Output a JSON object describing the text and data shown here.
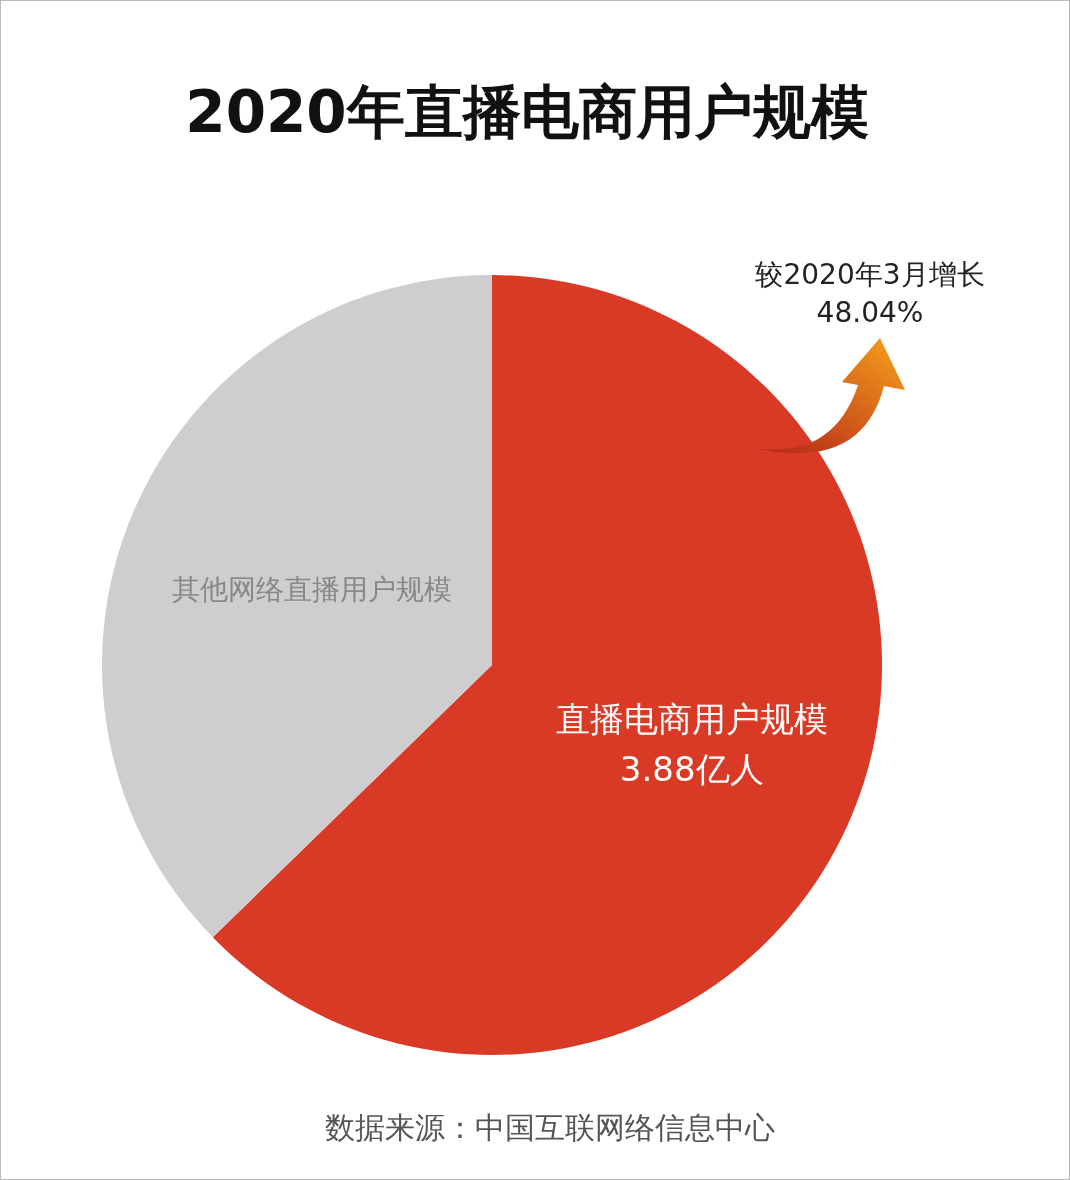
{
  "chart_data": {
    "type": "pie",
    "title": "2020年直播电商用户规模",
    "categories": [
      "直播电商用户规模",
      "其他网络直播用户规模"
    ],
    "values": [
      62.7,
      37.3
    ],
    "colors": [
      "#d93a26",
      "#cfcdcf"
    ],
    "annotations": [
      {
        "text": "较2020年3月增长\n48.04%"
      },
      {
        "text": "3.88亿人",
        "x": "直播电商用户规模"
      },
      "数据来源：中国互联网络信息中心"
    ]
  }
}
